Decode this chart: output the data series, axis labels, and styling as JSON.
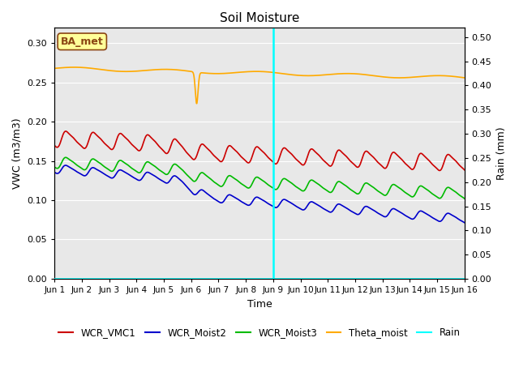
{
  "title": "Soil Moisture",
  "ylabel_left": "VWC (m3/m3)",
  "ylabel_right": "Rain (mm)",
  "xlabel": "Time",
  "xlim_days": [
    0,
    15
  ],
  "ylim_left": [
    0.0,
    0.32
  ],
  "ylim_right": [
    0.0,
    0.52
  ],
  "x_tick_labels": [
    "Jun 1",
    "Jun 2",
    "Jun 3",
    "Jun 4",
    "Jun 5",
    "Jun 6",
    "Jun 7",
    "Jun 8",
    "Jun 9",
    "Jun 10",
    "Jun 11",
    "Jun 12",
    "Jun 13",
    "Jun 14",
    "Jun 15",
    "Jun 16"
  ],
  "bg_color": "#e0e0e0",
  "plot_bg_color": "#e8e8e8",
  "vline_day": 8.0,
  "vline_color": "cyan",
  "legend_labels": [
    "WCR_VMC1",
    "WCR_Moist2",
    "WCR_Moist3",
    "Theta_moist",
    "Rain"
  ],
  "legend_colors": [
    "#cc0000",
    "#0000cc",
    "#00bb00",
    "#ffaa00",
    "cyan"
  ],
  "annotation_text": "BA_met",
  "annotation_color": "#8B4513",
  "annotation_bg": "#ffff99",
  "annotation_border": "#8B4513"
}
